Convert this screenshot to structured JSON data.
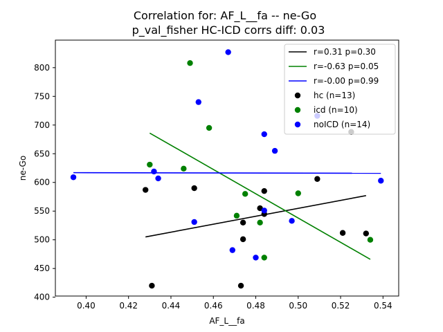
{
  "chart_data": {
    "type": "scatter",
    "title": "Correlation for: AF_L__fa -- ne-Go",
    "subtitle": "p_val_fisher HC-ICD corrs diff: 0.03",
    "xlabel": "AF_L__fa",
    "ylabel": "ne-Go",
    "xlim": [
      0.3855,
      0.5474
    ],
    "ylim": [
      402,
      848
    ],
    "xticks": [
      0.4,
      0.42,
      0.44,
      0.46,
      0.48,
      0.5,
      0.52,
      0.54
    ],
    "yticks": [
      400,
      450,
      500,
      550,
      600,
      650,
      700,
      750,
      800
    ],
    "grid": false,
    "legend_position": "top-right",
    "lines": [
      {
        "label": "r=0.31 p=0.30",
        "color": "#000000",
        "x": [
          0.428,
          0.532
        ],
        "y": [
          505,
          577
        ]
      },
      {
        "label": "r=-0.63 p=0.05",
        "color": "#008000",
        "x": [
          0.43,
          0.534
        ],
        "y": [
          686,
          466
        ]
      },
      {
        "label": "r=-0.00 p=0.99",
        "color": "#0000ff",
        "x": [
          0.394,
          0.539
        ],
        "y": [
          617,
          616
        ]
      }
    ],
    "series": [
      {
        "name": "hc (n=13)",
        "color": "#000000",
        "points": [
          [
            0.428,
            587
          ],
          [
            0.431,
            420
          ],
          [
            0.451,
            590
          ],
          [
            0.473,
            420
          ],
          [
            0.474,
            530
          ],
          [
            0.474,
            501
          ],
          [
            0.482,
            555
          ],
          [
            0.484,
            585
          ],
          [
            0.484,
            545
          ],
          [
            0.509,
            606
          ],
          [
            0.521,
            512
          ],
          [
            0.525,
            688
          ],
          [
            0.532,
            511
          ]
        ]
      },
      {
        "name": "icd (n=10)",
        "color": "#008000",
        "points": [
          [
            0.43,
            631
          ],
          [
            0.446,
            624
          ],
          [
            0.449,
            808
          ],
          [
            0.458,
            695
          ],
          [
            0.471,
            542
          ],
          [
            0.475,
            580
          ],
          [
            0.482,
            530
          ],
          [
            0.484,
            469
          ],
          [
            0.5,
            581
          ],
          [
            0.534,
            500
          ]
        ]
      },
      {
        "name": "noICD (n=14)",
        "color": "#0000ff",
        "points": [
          [
            0.394,
            609
          ],
          [
            0.432,
            619
          ],
          [
            0.434,
            607
          ],
          [
            0.451,
            531
          ],
          [
            0.453,
            740
          ],
          [
            0.467,
            827
          ],
          [
            0.469,
            482
          ],
          [
            0.48,
            469
          ],
          [
            0.484,
            684
          ],
          [
            0.484,
            551
          ],
          [
            0.489,
            655
          ],
          [
            0.497,
            533
          ],
          [
            0.509,
            716
          ],
          [
            0.539,
            603
          ]
        ]
      }
    ]
  }
}
